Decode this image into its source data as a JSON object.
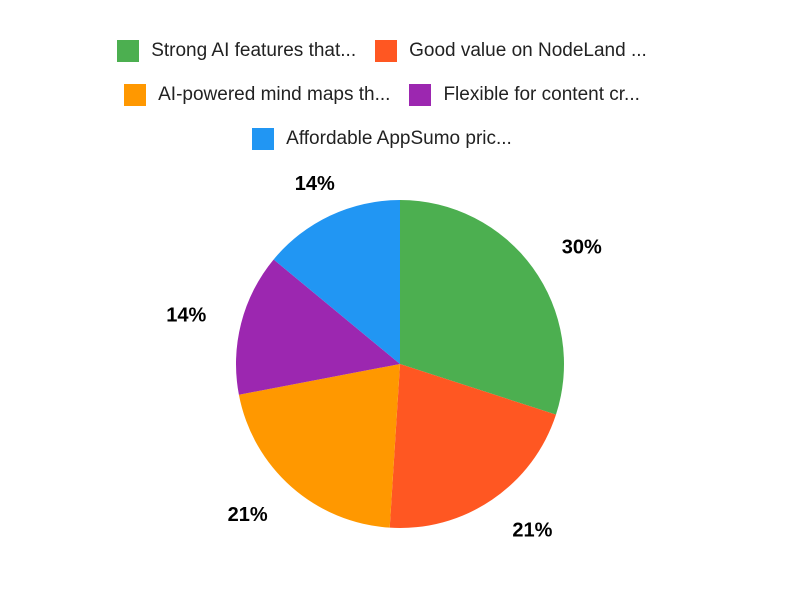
{
  "chart_data": {
    "type": "pie",
    "title": "",
    "legend_position": "top",
    "start_angle_deg": 0,
    "direction": "clockwise",
    "background": "#FFFFFF",
    "label_color": "#000000",
    "legend_text_color": "#222222",
    "slices": [
      {
        "label": "Strong AI features that...",
        "value": 30,
        "percent_label": "30%",
        "color": "#4CAF50"
      },
      {
        "label": "Good value on NodeLand ...",
        "value": 21,
        "percent_label": "21%",
        "color": "#FF5722"
      },
      {
        "label": "AI-powered mind maps th...",
        "value": 21,
        "percent_label": "21%",
        "color": "#FF9800"
      },
      {
        "label": "Flexible for content cr...",
        "value": 14,
        "percent_label": "14%",
        "color": "#9C27B0"
      },
      {
        "label": "Affordable AppSumo pric...",
        "value": 14,
        "percent_label": "14%",
        "color": "#2196F3"
      }
    ]
  }
}
